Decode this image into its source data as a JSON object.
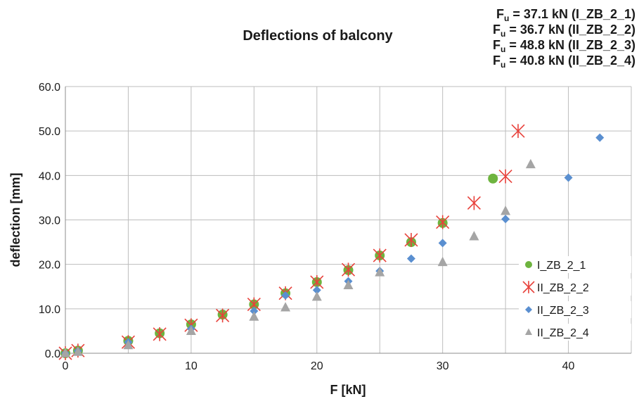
{
  "chart_data": {
    "type": "scatter",
    "title": "Deflections of balcony",
    "xlabel": "F [kN]",
    "ylabel": "deflection [mm]",
    "xlim": [
      0,
      45
    ],
    "ylim": [
      0,
      60
    ],
    "x_ticks": [
      "0",
      "10",
      "20",
      "30",
      "40"
    ],
    "y_ticks": [
      "0.0",
      "10.0",
      "20.0",
      "30.0",
      "40.0",
      "50.0",
      "60.0"
    ],
    "grid": true,
    "legend_position": "right",
    "annotations": [
      {
        "prefix": "F",
        "sub": "u",
        "text": " = 37.1 kN (I_ZB_2_1)"
      },
      {
        "prefix": "F",
        "sub": "u",
        "text": " = 36.7 kN (II_ZB_2_2)"
      },
      {
        "prefix": "F",
        "sub": "u",
        "text": " = 48.8 kN (II_ZB_2_3)"
      },
      {
        "prefix": "F",
        "sub": "u",
        "text": " = 40.8 kN (II_ZB_2_4)"
      }
    ],
    "series": [
      {
        "name": "I_ZB_2_1",
        "marker": "circle",
        "color": "#6eb43f",
        "points": [
          [
            0,
            0
          ],
          [
            1,
            0.6
          ],
          [
            5,
            2.8
          ],
          [
            7.5,
            4.5
          ],
          [
            10,
            6.5
          ],
          [
            12.5,
            8.7
          ],
          [
            15,
            11
          ],
          [
            17.5,
            13.5
          ],
          [
            20,
            16
          ],
          [
            22.5,
            18.7
          ],
          [
            25,
            22
          ],
          [
            27.5,
            25
          ],
          [
            30,
            29.3
          ],
          [
            34,
            39.3
          ]
        ]
      },
      {
        "name": "II_ZB_2_2",
        "marker": "star",
        "color": "#e8413b",
        "points": [
          [
            0,
            0
          ],
          [
            1,
            0.6
          ],
          [
            5,
            2.5
          ],
          [
            7.5,
            4.3
          ],
          [
            10,
            6.3
          ],
          [
            12.5,
            8.5
          ],
          [
            15,
            11
          ],
          [
            17.5,
            13.5
          ],
          [
            20,
            16
          ],
          [
            22.5,
            18.8
          ],
          [
            25,
            22
          ],
          [
            27.5,
            25.5
          ],
          [
            30,
            29.5
          ],
          [
            32.5,
            33.8
          ],
          [
            35,
            39.8
          ],
          [
            36,
            50
          ]
        ]
      },
      {
        "name": "II_ZB_2_3",
        "marker": "diamond",
        "color": "#5a8fd0",
        "points": [
          [
            0,
            0
          ],
          [
            1,
            0.5
          ],
          [
            5,
            2.5
          ],
          [
            10,
            5.5
          ],
          [
            15,
            9.5
          ],
          [
            17.5,
            13
          ],
          [
            20,
            14.2
          ],
          [
            22.5,
            16.2
          ],
          [
            25,
            18.5
          ],
          [
            27.5,
            21.3
          ],
          [
            30,
            24.8
          ],
          [
            35,
            30.2
          ],
          [
            40,
            39.5
          ],
          [
            42.5,
            48.5
          ]
        ]
      },
      {
        "name": "II_ZB_2_4",
        "marker": "triangle",
        "color": "#a5a5a5",
        "points": [
          [
            0,
            0
          ],
          [
            1,
            0.3
          ],
          [
            5,
            1.8
          ],
          [
            10,
            5
          ],
          [
            15,
            8.2
          ],
          [
            17.5,
            10.3
          ],
          [
            20,
            12.7
          ],
          [
            22.5,
            15.3
          ],
          [
            25,
            18.2
          ],
          [
            30,
            20.5
          ],
          [
            32.5,
            26.3
          ],
          [
            35,
            32
          ],
          [
            37,
            42.5
          ]
        ]
      }
    ]
  }
}
